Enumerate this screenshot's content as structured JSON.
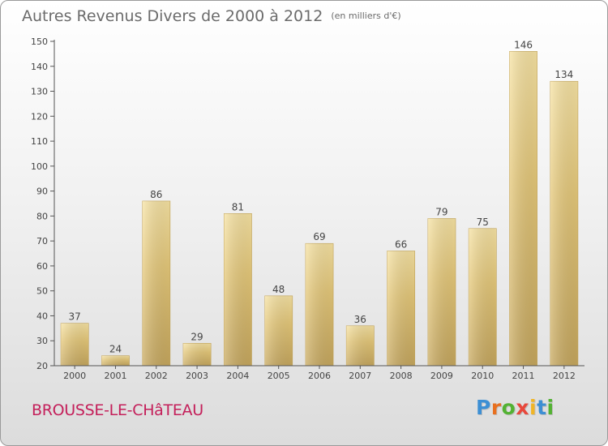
{
  "title": "Autres Revenus Divers de 2000 à 2012",
  "subtitle": "(en milliers d'€)",
  "location": "BROUSSE-LE-CHâTEAU",
  "logo": {
    "letters": [
      "P",
      "r",
      "o",
      "x",
      "i",
      "t",
      "i"
    ],
    "colors": [
      "#3d8fd4",
      "#e8701f",
      "#53b233",
      "#e8483c",
      "#f0b527",
      "#3d8fd4",
      "#53b233"
    ]
  },
  "colors": {
    "bar": "#e6c97a",
    "bar_dark": "#c7a85e",
    "bar_light": "#f7e3a3",
    "axis": "#666666",
    "grid": "#c8c8c8"
  },
  "chart_data": {
    "type": "bar",
    "categories": [
      "2000",
      "2001",
      "2002",
      "2003",
      "2004",
      "2005",
      "2006",
      "2007",
      "2008",
      "2009",
      "2010",
      "2011",
      "2012"
    ],
    "values": [
      37,
      24,
      86,
      29,
      81,
      48,
      69,
      36,
      66,
      79,
      75,
      146,
      134
    ],
    "ylim": [
      20,
      150
    ],
    "yticks": [
      20,
      30,
      40,
      50,
      60,
      70,
      80,
      90,
      100,
      110,
      120,
      130,
      140,
      150
    ],
    "title": "Autres Revenus Divers de 2000 à 2012",
    "xlabel": "",
    "ylabel": "",
    "grid": false,
    "data_labels": true
  }
}
